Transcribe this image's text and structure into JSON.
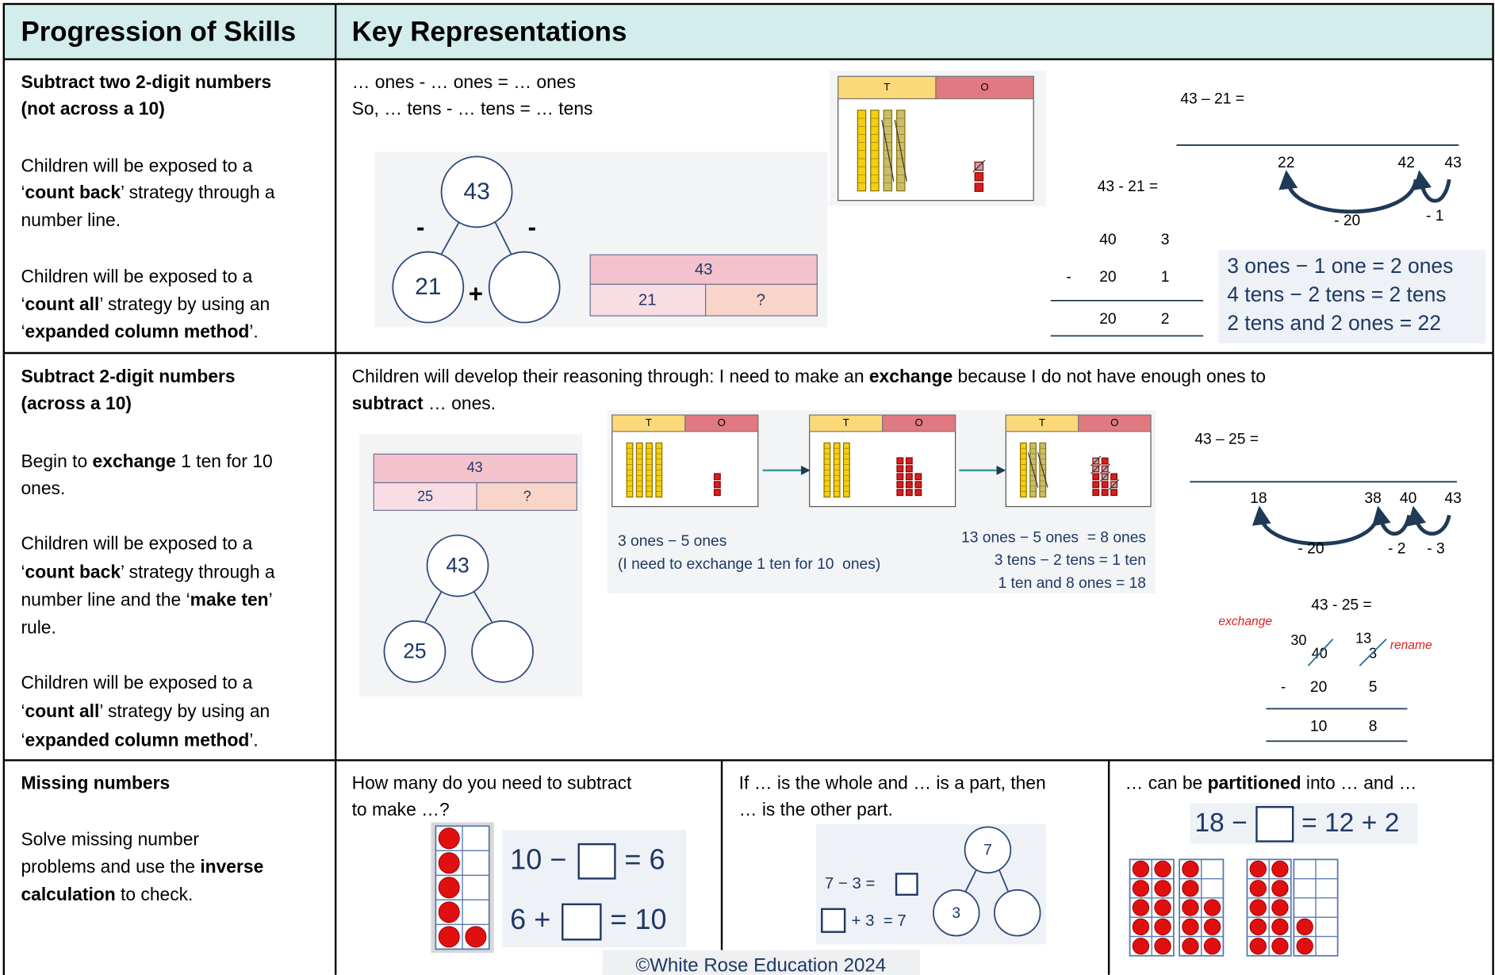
{
  "header": {
    "skills": "Progression of Skills",
    "representations": "Key Representations"
  },
  "rows": [
    {
      "skills": [
        [
          {
            "b": "Subtract two 2-digit numbers"
          }
        ],
        [
          {
            "b": "(not across a 10)"
          }
        ],
        [
          "Children will be exposed to a"
        ],
        [
          "‘",
          {
            "b": "count back"
          },
          "’ strategy through a"
        ],
        [
          "number line."
        ],
        [
          "Children will be exposed to a"
        ],
        [
          "‘",
          {
            "b": "count all"
          },
          "’ strategy by using an"
        ],
        [
          "‘",
          {
            "b": "expanded column method"
          },
          "’."
        ]
      ],
      "sentences": [
        [
          "… ones - … ones = … ones"
        ],
        [
          "So, … tens - … tens = … tens"
        ]
      ],
      "whole": 43,
      "part": 21,
      "minus_sign": "-",
      "plus_sign": "+",
      "bar_whole": 43,
      "bar_part": 21,
      "bar_unknown": "?",
      "pv_headers": [
        "T",
        "O"
      ],
      "nl_equation": "43 – 21 =",
      "nl_labels": [
        22,
        42,
        43
      ],
      "nl_jumps": [
        "- 20",
        "- 1"
      ],
      "col_equation": "43 - 21 =",
      "col_minus": "-",
      "col_rows": [
        [
          40,
          3
        ],
        [
          20,
          1
        ],
        [
          20,
          2
        ]
      ],
      "summary": [
        "3 ones − 1 one = 2 ones",
        "4 tens − 2 tens = 2 tens",
        "2 tens and 2 ones = 22"
      ]
    },
    {
      "skills": [
        [
          {
            "b": "Subtract 2-digit numbers"
          }
        ],
        [
          {
            "b": "(across a 10)"
          }
        ],
        [
          "Begin to ",
          {
            "b": "exchange"
          },
          " 1 ten for 10"
        ],
        [
          "ones."
        ],
        [
          "Children will be exposed to a"
        ],
        [
          "‘",
          {
            "b": "count back"
          },
          "’ strategy through a"
        ],
        [
          "number line and the ‘",
          {
            "b": "make ten"
          },
          "’"
        ],
        [
          "rule."
        ],
        [
          "Children will be exposed to a"
        ],
        [
          "‘",
          {
            "b": "count all"
          },
          "’ strategy by using an"
        ],
        [
          "‘",
          {
            "b": "expanded column method"
          },
          "’."
        ]
      ],
      "sentences": [
        [
          "Children will develop their reasoning through: I need to make an ",
          {
            "b": "exchange"
          },
          " because I do not have enough ones to"
        ],
        [
          {
            "b": "subtract"
          },
          " … ones."
        ]
      ],
      "bar_whole": 43,
      "bar_part": 25,
      "bar_unknown": "?",
      "whole": 43,
      "part": 25,
      "pv_headers": [
        "T",
        "O"
      ],
      "exchange_notes_left": [
        "3 ones − 5 ones",
        "(I need to exchange 1 ten for 10  ones)"
      ],
      "exchange_notes_right": [
        "13 ones − 5 ones  = 8 ones",
        "3 tens − 2 tens = 1 ten",
        "1 ten and 8 ones = 18"
      ],
      "nl_equation": "43 – 25 =",
      "nl_labels": [
        18,
        38,
        40,
        43
      ],
      "nl_jumps": [
        "- 20",
        "- 2",
        "- 3"
      ],
      "col_equation": "43 - 25 =",
      "exchange_note": "exchange",
      "rename_note": "rename",
      "new_tens": 30,
      "old_tens": 40,
      "new_ones": 13,
      "old_ones": 3,
      "col_minus": "-",
      "col_rows": [
        [
          20,
          5
        ],
        [
          10,
          8
        ]
      ]
    },
    {
      "skills": [
        [
          {
            "b": "Missing numbers"
          }
        ],
        [
          "Solve missing number"
        ],
        [
          "problems and use the ",
          {
            "b": "inverse"
          }
        ],
        [
          {
            "b": "calculation"
          },
          " to check."
        ]
      ],
      "columns": [
        {
          "prompt": [
            [
              "How many do you need to subtract"
            ],
            [
              "to make …?"
            ]
          ],
          "equations": [
            [
              "10 −",
              "= 6"
            ],
            [
              "6 +",
              "= 10"
            ]
          ]
        },
        {
          "prompt": [
            [
              "If … is the whole and … is a part, then"
            ],
            [
              "… is the other part."
            ]
          ],
          "equations": [
            "7 − 3 =",
            "+ 3  = 7"
          ],
          "whole": 7,
          "part": 3
        },
        {
          "prompt": [
            [
              "… can be ",
              {
                "b": "partitioned"
              },
              " into … and …"
            ]
          ],
          "equation": [
            "18 −",
            "= 12 + 2"
          ]
        }
      ]
    }
  ],
  "footer": "©White Rose Education 2024"
}
